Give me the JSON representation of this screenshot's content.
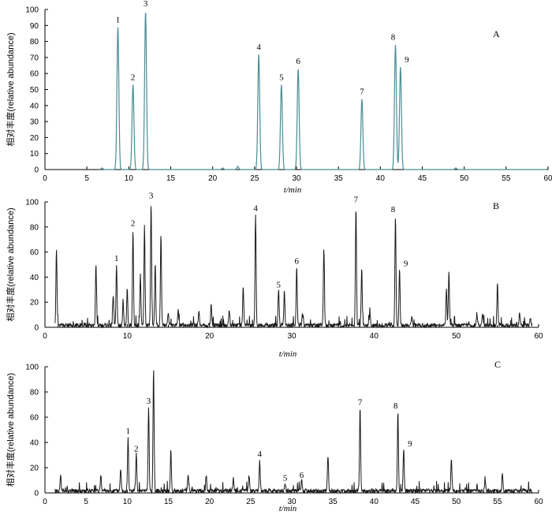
{
  "chart_data": [
    {
      "type": "line",
      "panel": "A",
      "ylabel": "相对丰度(relative abundance)",
      "xlabel": "t/min",
      "xlim": [
        0,
        60
      ],
      "ylim": [
        0,
        100
      ],
      "xticks": [
        0,
        5,
        10,
        15,
        20,
        25,
        30,
        35,
        40,
        45,
        50,
        55,
        60
      ],
      "yticks": [
        0,
        10,
        20,
        30,
        40,
        50,
        60,
        70,
        80,
        90,
        100
      ],
      "line_color": "#4a8e96",
      "peaks": [
        {
          "label": "1",
          "x": 8.7,
          "y": 89
        },
        {
          "label": "2",
          "x": 10.5,
          "y": 53
        },
        {
          "label": "3",
          "x": 12.0,
          "y": 99
        },
        {
          "label": "4",
          "x": 25.5,
          "y": 72
        },
        {
          "label": "5",
          "x": 28.2,
          "y": 53
        },
        {
          "label": "6",
          "x": 30.2,
          "y": 63
        },
        {
          "label": "7",
          "x": 37.8,
          "y": 44
        },
        {
          "label": "8",
          "x": 41.8,
          "y": 78
        },
        {
          "label": "9",
          "x": 42.4,
          "y": 64
        }
      ],
      "minor": [
        [
          6.8,
          1
        ],
        [
          21.2,
          1
        ],
        [
          23.0,
          2
        ],
        [
          49.0,
          1
        ]
      ]
    },
    {
      "type": "line",
      "panel": "B",
      "ylabel": "相对丰度(relative abundance)",
      "xlabel": "t/min",
      "xlim": [
        0,
        60
      ],
      "ylim": [
        0,
        100
      ],
      "xticks": [
        0,
        10,
        20,
        30,
        40,
        50,
        60
      ],
      "minor_xticks": [
        5,
        15,
        25,
        35,
        45,
        55
      ],
      "yticks": [
        0,
        20,
        40,
        60,
        80,
        100
      ],
      "line_color": "#1a1a1a",
      "peaks": [
        {
          "label": "1",
          "x": 8.7,
          "y": 49
        },
        {
          "label": "2",
          "x": 10.7,
          "y": 77
        },
        {
          "label": "3",
          "x": 12.9,
          "y": 99
        },
        {
          "label": "4",
          "x": 25.6,
          "y": 89
        },
        {
          "label": "5",
          "x": 28.4,
          "y": 28
        },
        {
          "label": "6",
          "x": 30.6,
          "y": 47
        },
        {
          "label": "7",
          "x": 37.8,
          "y": 96
        },
        {
          "label": "8",
          "x": 42.6,
          "y": 88
        },
        {
          "label": "9",
          "x": 43.1,
          "y": 45
        }
      ],
      "minor": [
        [
          1.4,
          62
        ],
        [
          6.2,
          49
        ],
        [
          8.3,
          25
        ],
        [
          9.5,
          20
        ],
        [
          10.0,
          30
        ],
        [
          11.6,
          40
        ],
        [
          12.1,
          79
        ],
        [
          13.4,
          50
        ],
        [
          14.1,
          72
        ],
        [
          15.0,
          10
        ],
        [
          16.2,
          12
        ],
        [
          18.7,
          12
        ],
        [
          20.2,
          18
        ],
        [
          22.4,
          13
        ],
        [
          24.1,
          31
        ],
        [
          29.1,
          27
        ],
        [
          31.3,
          10
        ],
        [
          33.9,
          62
        ],
        [
          38.5,
          45
        ],
        [
          39.5,
          10
        ],
        [
          44.6,
          7
        ],
        [
          48.8,
          30
        ],
        [
          49.1,
          44
        ],
        [
          52.5,
          7
        ],
        [
          53.2,
          9
        ],
        [
          55.0,
          33
        ],
        [
          57.7,
          10
        ],
        [
          59.0,
          6
        ]
      ]
    },
    {
      "type": "line",
      "panel": "C",
      "ylabel": "相对丰度(relative abundance)",
      "xlabel": "t/min",
      "xlim": [
        0,
        60
      ],
      "ylim": [
        0,
        100
      ],
      "xticks": [
        0,
        5,
        10,
        15,
        20,
        25,
        30,
        35,
        40,
        45,
        50,
        55,
        60
      ],
      "yticks": [
        0,
        20,
        40,
        60,
        80,
        100
      ],
      "line_color": "#1a1a1a",
      "peaks": [
        {
          "label": "1",
          "x": 10.1,
          "y": 43
        },
        {
          "label": "2",
          "x": 11.1,
          "y": 29
        },
        {
          "label": "3",
          "x": 12.6,
          "y": 67
        },
        {
          "label": "4",
          "x": 26.1,
          "y": 25
        },
        {
          "label": "5",
          "x": 29.2,
          "y": 6
        },
        {
          "label": "6",
          "x": 31.2,
          "y": 8
        },
        {
          "label": "7",
          "x": 38.3,
          "y": 66
        },
        {
          "label": "8",
          "x": 42.9,
          "y": 63
        },
        {
          "label": "9",
          "x": 43.6,
          "y": 33
        }
      ],
      "minor": [
        [
          1.9,
          12
        ],
        [
          6.8,
          13
        ],
        [
          9.2,
          18
        ],
        [
          13.2,
          98
        ],
        [
          15.3,
          32
        ],
        [
          17.4,
          14
        ],
        [
          19.6,
          12
        ],
        [
          22.9,
          10
        ],
        [
          24.8,
          12
        ],
        [
          34.4,
          29
        ],
        [
          49.4,
          26
        ],
        [
          53.5,
          8
        ],
        [
          55.6,
          13
        ]
      ]
    }
  ]
}
